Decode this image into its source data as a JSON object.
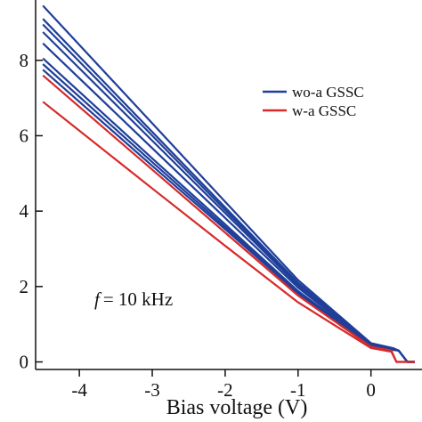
{
  "chart_data": {
    "type": "line",
    "title": "",
    "xlabel": "Bias voltage (V)",
    "ylabel": "",
    "xlim": [
      -4.6,
      0.7
    ],
    "ylim": [
      -0.2,
      9.6
    ],
    "x_ticks": [
      -4,
      -3,
      -2,
      -1,
      0
    ],
    "x_tick_labels": [
      "-4",
      "-3",
      "-2",
      "-1",
      "0"
    ],
    "y_ticks": [
      0,
      2,
      4,
      6,
      8
    ],
    "y_tick_labels": [
      "0",
      "2",
      "4",
      "6",
      "8"
    ],
    "grid": false,
    "legend_position": "top-right",
    "legend": [
      {
        "label": "wo-a GSSC",
        "color": "#1f3f9a"
      },
      {
        "label": "w-a GSSC",
        "color": "#d62a2a"
      }
    ],
    "annotation": {
      "italic_part": "f",
      "rest": "= 10 kHz"
    },
    "series": [
      {
        "group": "wo-a GSSC",
        "color": "#1f3f9a",
        "x": [
          -4.5,
          -3,
          -2,
          -1,
          0,
          0.3,
          0.38,
          0.5,
          0.6
        ],
        "y": [
          9.45,
          6.33,
          4.25,
          2.17,
          0.5,
          0.37,
          0.3,
          0.0,
          0.0
        ]
      },
      {
        "group": "wo-a GSSC",
        "color": "#1f3f9a",
        "x": [
          -4.5,
          -3,
          -2,
          -1,
          0,
          0.3,
          0.38,
          0.5,
          0.6
        ],
        "y": [
          9.1,
          6.1,
          4.1,
          2.1,
          0.48,
          0.36,
          0.3,
          0.0,
          0.0
        ]
      },
      {
        "group": "wo-a GSSC",
        "color": "#1f3f9a",
        "x": [
          -4.5,
          -3,
          -2,
          -1,
          0,
          0.3,
          0.38,
          0.5,
          0.6
        ],
        "y": [
          8.95,
          6.0,
          4.03,
          2.07,
          0.47,
          0.35,
          0.3,
          0.0,
          0.0
        ]
      },
      {
        "group": "wo-a GSSC",
        "color": "#1f3f9a",
        "x": [
          -4.5,
          -3,
          -2,
          -1,
          0,
          0.3,
          0.38,
          0.5,
          0.6
        ],
        "y": [
          8.75,
          5.87,
          3.95,
          2.03,
          0.46,
          0.35,
          0.3,
          0.0,
          0.0
        ]
      },
      {
        "group": "wo-a GSSC",
        "color": "#1f3f9a",
        "x": [
          -4.5,
          -3,
          -2,
          -1,
          0,
          0.3,
          0.38,
          0.5,
          0.6
        ],
        "y": [
          8.45,
          5.67,
          3.82,
          1.97,
          0.45,
          0.34,
          0.3,
          0.0,
          0.0
        ]
      },
      {
        "group": "wo-a GSSC",
        "color": "#1f3f9a",
        "x": [
          -4.5,
          -3,
          -2,
          -1,
          0,
          0.3,
          0.38,
          0.5,
          0.6
        ],
        "y": [
          8.05,
          5.4,
          3.65,
          1.88,
          0.43,
          0.33,
          0.3,
          0.0,
          0.0
        ]
      },
      {
        "group": "wo-a GSSC",
        "color": "#1f3f9a",
        "x": [
          -4.5,
          -3,
          -2,
          -1,
          0,
          0.3,
          0.38,
          0.5,
          0.6
        ],
        "y": [
          7.9,
          5.3,
          3.58,
          1.85,
          0.42,
          0.33,
          0.3,
          0.0,
          0.0
        ]
      },
      {
        "group": "wo-a GSSC",
        "color": "#1f3f9a",
        "x": [
          -4.5,
          -3,
          -2,
          -1,
          0,
          0.3,
          0.38,
          0.5,
          0.6
        ],
        "y": [
          7.75,
          5.2,
          3.52,
          1.82,
          0.41,
          0.32,
          0.3,
          0.0,
          0.0
        ]
      },
      {
        "group": "w-a GSSC",
        "color": "#d62a2a",
        "x": [
          -4.5,
          -3,
          -2,
          -1,
          0,
          0.28,
          0.35,
          0.5,
          0.6
        ],
        "y": [
          7.6,
          5.1,
          3.43,
          1.76,
          0.4,
          0.3,
          0.0,
          0.0,
          0.0
        ]
      },
      {
        "group": "w-a GSSC",
        "color": "#d62a2a",
        "x": [
          -4.5,
          -3,
          -2,
          -1,
          0,
          0.28,
          0.35,
          0.5,
          0.6
        ],
        "y": [
          6.9,
          4.6,
          3.08,
          1.58,
          0.37,
          0.27,
          0.0,
          0.0,
          0.0
        ]
      }
    ]
  }
}
